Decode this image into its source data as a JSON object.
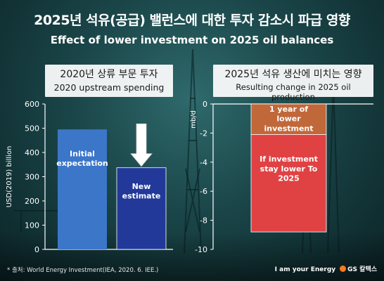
{
  "title_ko": "2025년 석유(공급) 밸런스에 대한 투자 감소시 파급 영향",
  "title_en": "Effect of lower investment on 2025 oil balances",
  "colors": {
    "initial_bar": "#3c76c9",
    "new_bar": "#22399a",
    "lower_bar": "#c0683a",
    "stay_bar": "#e04244",
    "arrow": "#ffffff"
  },
  "chart_data": [
    {
      "type": "bar",
      "title_ko": "2020년 상류 부문 투자",
      "title": "2020 upstream spending",
      "ylabel": "USD(2019) billion",
      "ylim": [
        0,
        600
      ],
      "yticks": [
        "0",
        "100",
        "200",
        "300",
        "400",
        "500",
        "600"
      ],
      "categories": [
        "Initial expectation",
        "New estimate"
      ],
      "values": [
        495,
        337
      ],
      "grid": false,
      "annotation": "downward-arrow"
    },
    {
      "type": "bar",
      "stacked": true,
      "title_ko": "2025년 석유 생산에 미치는 영향",
      "title": "Resulting change in 2025 oil production",
      "ylabel": "mb/d",
      "ylim": [
        -10,
        0
      ],
      "yticks": [
        "0",
        "-2",
        "-4",
        "-6",
        "-8",
        "-10"
      ],
      "segments": [
        {
          "label": "1 year of lower investment",
          "value": -2.1
        },
        {
          "label": "If investment stay lower To 2025",
          "value": -6.7
        }
      ],
      "total": -8.8,
      "grid": false
    }
  ],
  "footer": {
    "source": "* 출처: World Energy Investment(IEA, 2020. 6. IEE.)",
    "slogan": "I am your Energy",
    "company": "GS 칼텍스"
  }
}
